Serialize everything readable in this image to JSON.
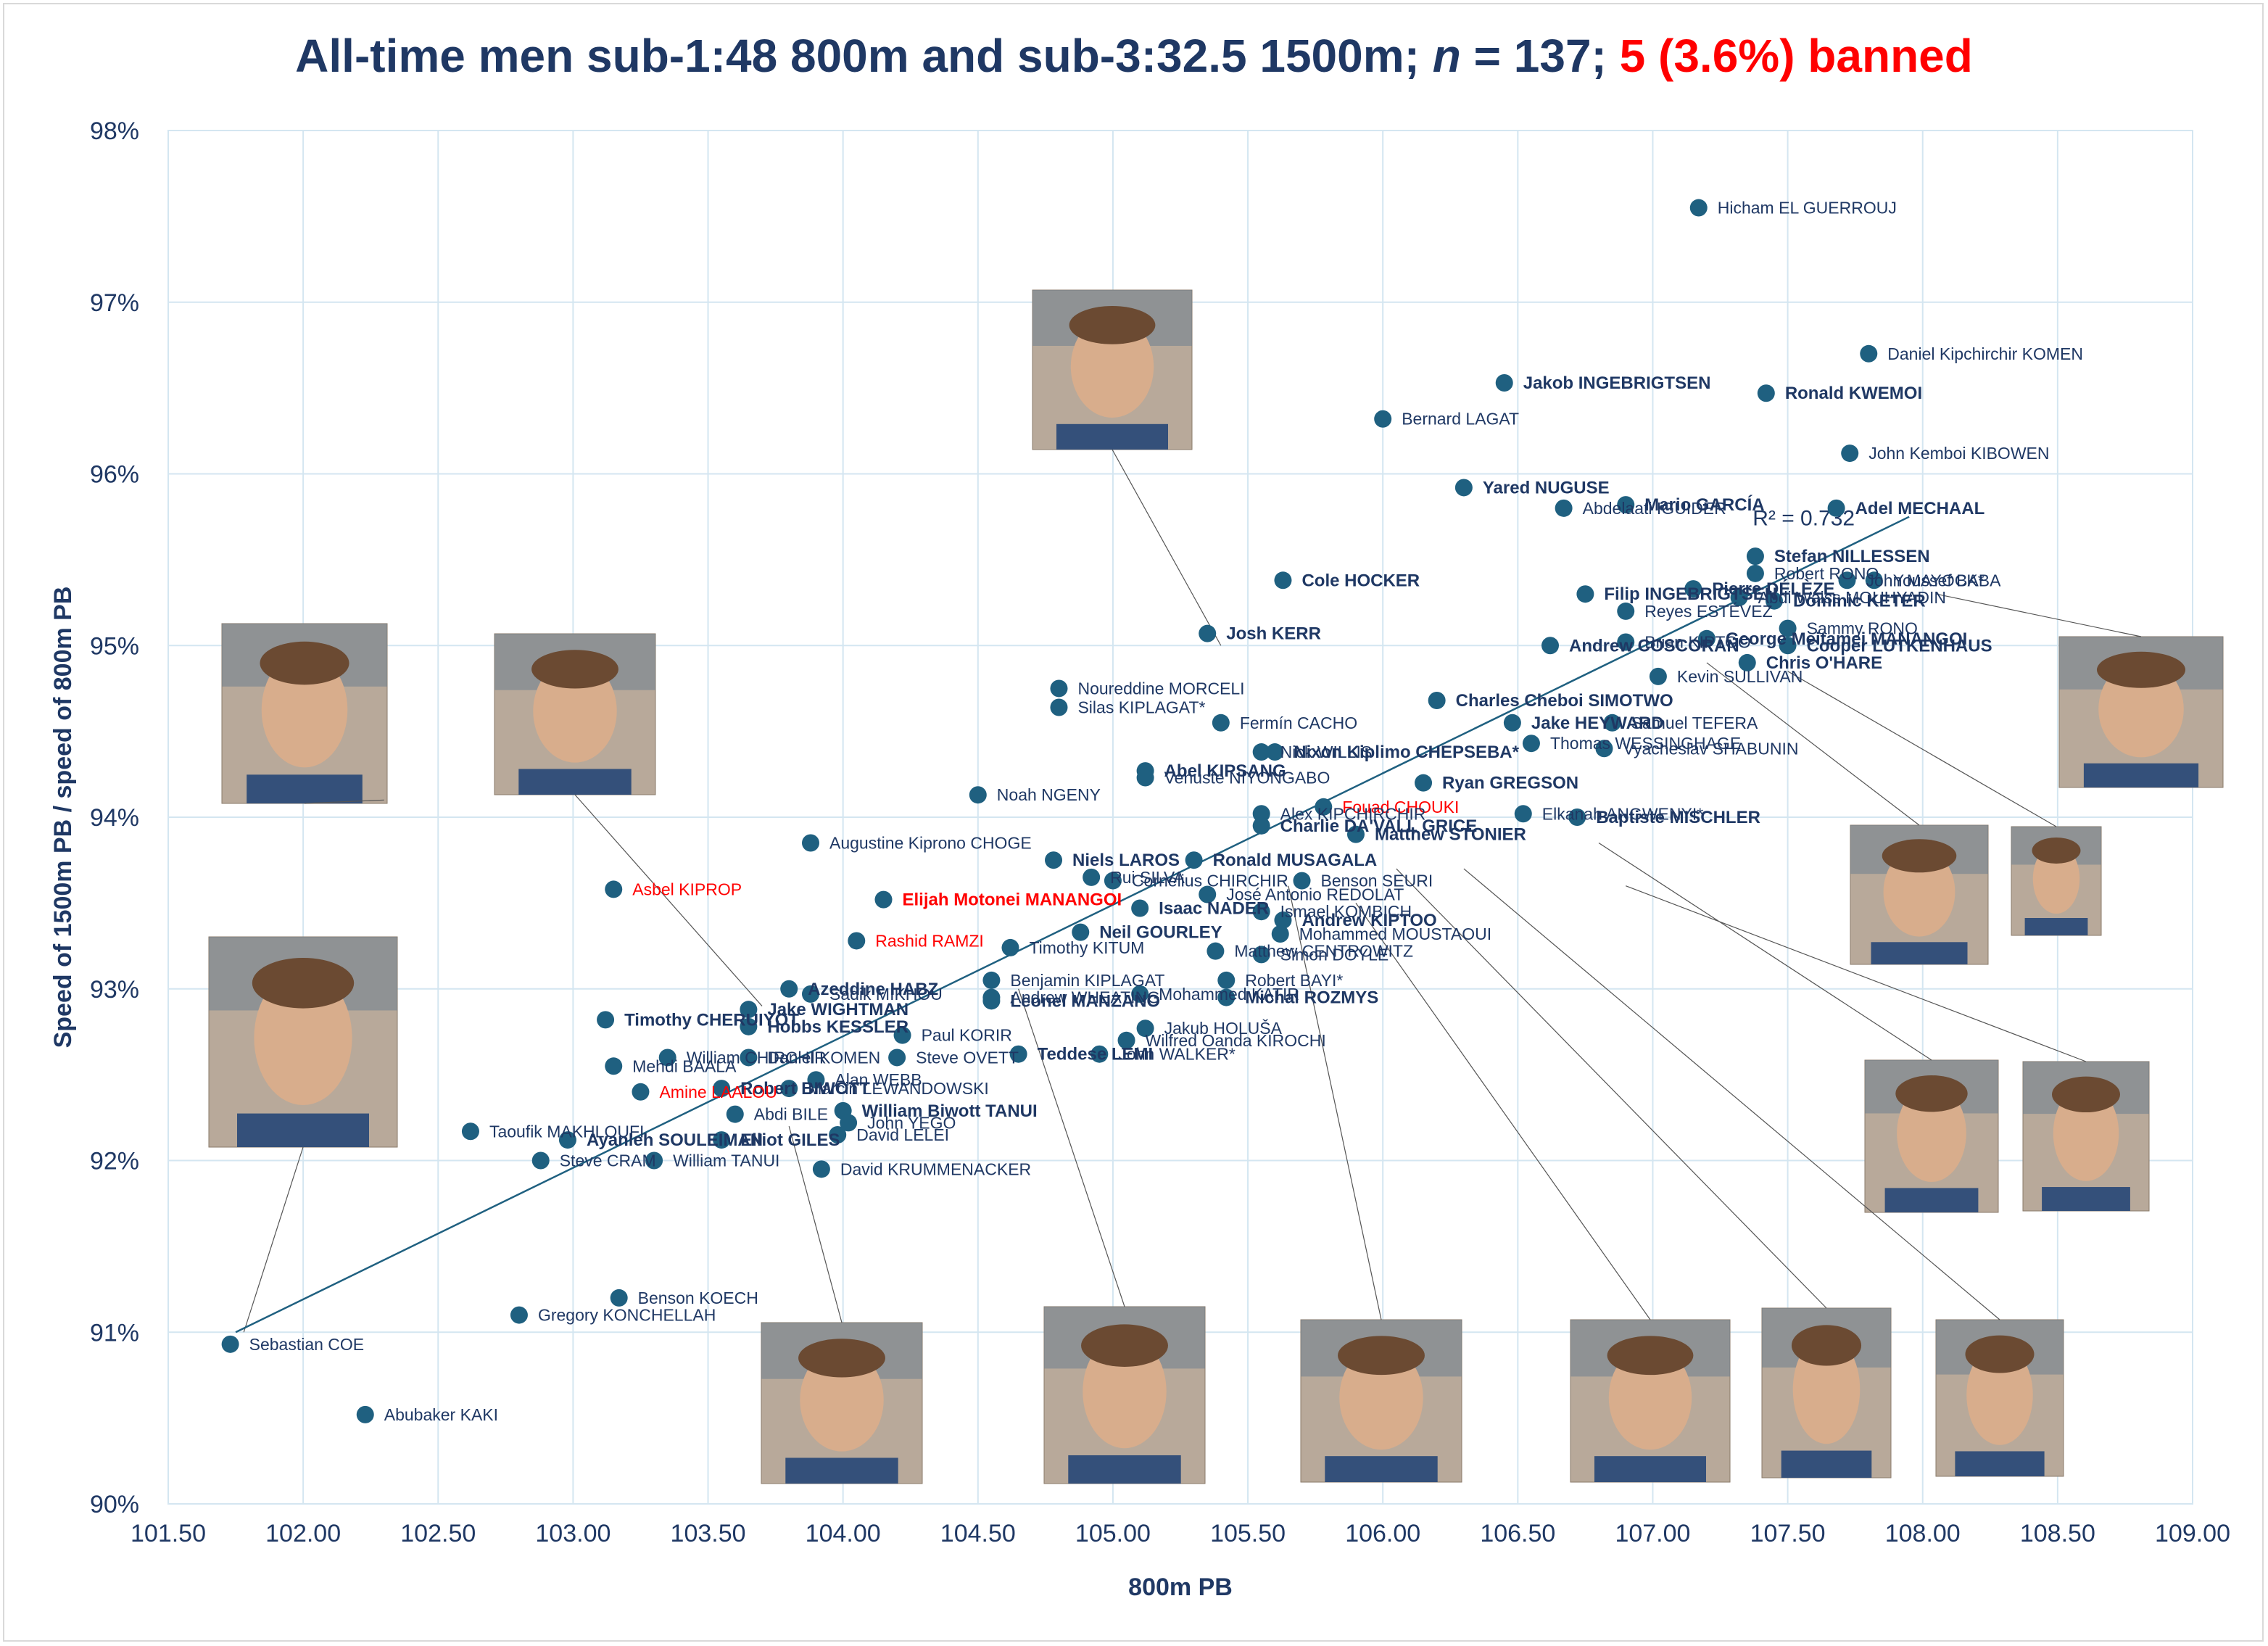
{
  "title": {
    "part1": "All-time men sub-1:48 800m and sub-3:32.5 1500m; ",
    "n_symbol": "n",
    "part2": " = 137; ",
    "banned_text": "5 (3.6%) banned"
  },
  "colors": {
    "marker": "#1f6080",
    "text": "#1f3864",
    "banned": "#ff0000",
    "grid": "#d4e6f1",
    "trendline": "#1f6080"
  },
  "chart_data": {
    "type": "scatter",
    "title": "All-time men sub-1:48 800m and sub-3:32.5 1500m; n = 137; 5 (3.6%) banned",
    "xlabel": "800m PB",
    "ylabel": "Speed of 1500m PB / speed of 800m PB",
    "xlim": [
      101.5,
      109.0
    ],
    "ylim": [
      90,
      98
    ],
    "x_ticks": [
      "101.50",
      "102.00",
      "102.50",
      "103.00",
      "103.50",
      "104.00",
      "104.50",
      "105.00",
      "105.50",
      "106.00",
      "106.50",
      "107.00",
      "107.50",
      "108.00",
      "108.50",
      "109.00"
    ],
    "y_ticks": [
      "90%",
      "91%",
      "92%",
      "93%",
      "94%",
      "95%",
      "96%",
      "97%",
      "98%"
    ],
    "grid": true,
    "trendline": {
      "x0": 101.75,
      "y0": 91.0,
      "x1": 107.95,
      "y1": 95.75,
      "r2_label": "R² = 0.732"
    },
    "points": [
      {
        "name": "Hicham EL GUERROUJ",
        "x": 107.17,
        "y": 97.55
      },
      {
        "name": "Daniel Kipchirchir KOMEN",
        "x": 107.8,
        "y": 96.7
      },
      {
        "name": "Jakob INGEBRIGTSEN",
        "x": 106.45,
        "y": 96.53,
        "bold": true
      },
      {
        "name": "Ronald KWEMOI",
        "x": 107.42,
        "y": 96.47,
        "bold": true
      },
      {
        "name": "Bernard LAGAT",
        "x": 106.0,
        "y": 96.32
      },
      {
        "name": "John Kemboi KIBOWEN",
        "x": 107.73,
        "y": 96.12
      },
      {
        "name": "Yared NUGUSE",
        "x": 106.3,
        "y": 95.92,
        "bold": true
      },
      {
        "name": "Abdelaati IGUIDER",
        "x": 106.67,
        "y": 95.8
      },
      {
        "name": "Mario GARCÍA",
        "x": 106.9,
        "y": 95.82,
        "bold": true
      },
      {
        "name": "Adel MECHAAL",
        "x": 107.68,
        "y": 95.8,
        "bold": true
      },
      {
        "name": "Stefan NILLESSEN",
        "x": 107.38,
        "y": 95.52,
        "bold": true
      },
      {
        "name": "Robert RONO",
        "x": 107.38,
        "y": 95.42
      },
      {
        "name": "John MAYOCK*",
        "x": 107.72,
        "y": 95.38
      },
      {
        "name": "Youssef BABA",
        "x": 107.82,
        "y": 95.38
      },
      {
        "name": "Cole HOCKER",
        "x": 105.63,
        "y": 95.38,
        "bold": true
      },
      {
        "name": "Filip INGEBRIGTSEN",
        "x": 106.75,
        "y": 95.3,
        "bold": true
      },
      {
        "name": "Pierre DÉLÈZE",
        "x": 107.15,
        "y": 95.33,
        "bold": true
      },
      {
        "name": "Abdi Waiss MOUHYADIN",
        "x": 107.32,
        "y": 95.28
      },
      {
        "name": "Dominic KETER",
        "x": 107.45,
        "y": 95.26,
        "bold": true
      },
      {
        "name": "Reyes ESTÉVEZ",
        "x": 106.9,
        "y": 95.2
      },
      {
        "name": "Sammy RONO",
        "x": 107.5,
        "y": 95.1
      },
      {
        "name": "Josh KERR",
        "x": 105.35,
        "y": 95.07,
        "bold": true
      },
      {
        "name": "Andrew COSCORAN",
        "x": 106.62,
        "y": 95.0,
        "bold": true
      },
      {
        "name": "Brian KIPTOO",
        "x": 106.9,
        "y": 95.02
      },
      {
        "name": "George Meitamei MANANGOI",
        "x": 107.2,
        "y": 95.04,
        "bold": true
      },
      {
        "name": "Cooper LUTKENHAUS",
        "x": 107.5,
        "y": 95.0,
        "bold": true
      },
      {
        "name": "Chris O'HARE",
        "x": 107.35,
        "y": 94.9,
        "bold": true
      },
      {
        "name": "Kevin SULLIVAN",
        "x": 107.02,
        "y": 94.82
      },
      {
        "name": "Noureddine MORCELI",
        "x": 104.8,
        "y": 94.75
      },
      {
        "name": "Charles Cheboi SIMOTWO",
        "x": 106.2,
        "y": 94.68,
        "bold": true
      },
      {
        "name": "Silas KIPLAGAT*",
        "x": 104.8,
        "y": 94.64
      },
      {
        "name": "Fermín CACHO",
        "x": 105.4,
        "y": 94.55
      },
      {
        "name": "Jake HEYWARD",
        "x": 106.48,
        "y": 94.55,
        "bold": true
      },
      {
        "name": "Samuel TEFERA",
        "x": 106.85,
        "y": 94.55
      },
      {
        "name": "Thomas WESSINGHAGE",
        "x": 106.55,
        "y": 94.43
      },
      {
        "name": "Vyacheslav SHABUNIN",
        "x": 106.82,
        "y": 94.4
      },
      {
        "name": "Nixon Kiplimo CHEPSEBA*",
        "x": 105.6,
        "y": 94.38,
        "bold": true
      },
      {
        "name": "Nick WILLIS",
        "x": 105.55,
        "y": 94.38
      },
      {
        "name": "Abel KIPSANG",
        "x": 105.12,
        "y": 94.27,
        "bold": true
      },
      {
        "name": "Venuste NIYONGABO",
        "x": 105.12,
        "y": 94.23
      },
      {
        "name": "Ryan GREGSON",
        "x": 106.15,
        "y": 94.2,
        "bold": true
      },
      {
        "name": "Noah NGENY",
        "x": 104.5,
        "y": 94.13
      },
      {
        "name": "Fouad CHOUKI",
        "x": 105.78,
        "y": 94.06,
        "banned": true
      },
      {
        "name": "Alex KIPCHIRCHIR",
        "x": 105.55,
        "y": 94.02
      },
      {
        "name": "Elkanah ANGWENYI*",
        "x": 106.52,
        "y": 94.02
      },
      {
        "name": "Baptiste MISCHLER",
        "x": 106.72,
        "y": 94.0,
        "bold": true
      },
      {
        "name": "Charlie DA'VALL GRICE",
        "x": 105.55,
        "y": 93.95,
        "bold": true
      },
      {
        "name": "Matthew STONIER",
        "x": 105.9,
        "y": 93.9,
        "bold": true
      },
      {
        "name": "Augustine Kiprono CHOGE",
        "x": 103.88,
        "y": 93.85
      },
      {
        "name": "Ronald MUSAGALA",
        "x": 105.3,
        "y": 93.75,
        "bold": true
      },
      {
        "name": "Niels LAROS",
        "x": 104.78,
        "y": 93.75,
        "bold": true
      },
      {
        "name": "Rui SILVA",
        "x": 104.92,
        "y": 93.65
      },
      {
        "name": "Cornelius CHIRCHIR",
        "x": 105.0,
        "y": 93.63
      },
      {
        "name": "Benson SEURI",
        "x": 105.7,
        "y": 93.63
      },
      {
        "name": "Elijah Motonei MANANGOI",
        "x": 104.15,
        "y": 93.52,
        "banned": true,
        "bold": true
      },
      {
        "name": "Asbel KIPROP",
        "x": 103.15,
        "y": 93.58,
        "banned": true
      },
      {
        "name": "José Antonio REDOLAT",
        "x": 105.35,
        "y": 93.55
      },
      {
        "name": "Isaac NADER",
        "x": 105.1,
        "y": 93.47,
        "bold": true
      },
      {
        "name": "Ismael KOMBICH",
        "x": 105.55,
        "y": 93.45
      },
      {
        "name": "Andrew KIPTOO",
        "x": 105.63,
        "y": 93.4,
        "bold": true
      },
      {
        "name": "Neil GOURLEY",
        "x": 104.88,
        "y": 93.33,
        "bold": true
      },
      {
        "name": "Rashid RAMZI",
        "x": 104.05,
        "y": 93.28,
        "banned": true
      },
      {
        "name": "Timothy KITUM",
        "x": 104.62,
        "y": 93.24
      },
      {
        "name": "Matthew CENTROWITZ",
        "x": 105.38,
        "y": 93.22
      },
      {
        "name": "Simon DOYLE",
        "x": 105.55,
        "y": 93.2
      },
      {
        "name": "Mohammed MOUSTAOUI",
        "x": 105.62,
        "y": 93.32
      },
      {
        "name": "Azeddine HABZ",
        "x": 103.8,
        "y": 93.0,
        "bold": true
      },
      {
        "name": "Sadik MIKHOU",
        "x": 103.88,
        "y": 92.97
      },
      {
        "name": "Benjamin KIPLAGAT",
        "x": 104.55,
        "y": 93.05
      },
      {
        "name": "Andrew WHEATING",
        "x": 104.55,
        "y": 92.95
      },
      {
        "name": "Robert BAYI*",
        "x": 105.42,
        "y": 93.05
      },
      {
        "name": "Leonel MANZANO",
        "x": 104.55,
        "y": 92.93,
        "bold": true
      },
      {
        "name": "Mohammed KATIR",
        "x": 105.1,
        "y": 92.97
      },
      {
        "name": "Michal ROZMYS",
        "x": 105.42,
        "y": 92.95,
        "bold": true
      },
      {
        "name": "Timothy CHERUIYOT",
        "x": 103.12,
        "y": 92.82,
        "bold": true
      },
      {
        "name": "Jake WIGHTMAN",
        "x": 103.65,
        "y": 92.88,
        "bold": true
      },
      {
        "name": "Hobbs KESSLER",
        "x": 103.65,
        "y": 92.78,
        "bold": true
      },
      {
        "name": "Jakub HOLUŠA",
        "x": 105.12,
        "y": 92.77
      },
      {
        "name": "Paul KORIR",
        "x": 104.22,
        "y": 92.73
      },
      {
        "name": "Wilfred Oanda KIROCHI",
        "x": 105.05,
        "y": 92.7
      },
      {
        "name": "Teddese LEMI",
        "x": 104.65,
        "y": 92.62,
        "bold": true
      },
      {
        "name": "John WALKER*",
        "x": 104.95,
        "y": 92.62
      },
      {
        "name": "William CHIRCHIR",
        "x": 103.35,
        "y": 92.6
      },
      {
        "name": "Daniel KOMEN",
        "x": 103.65,
        "y": 92.6
      },
      {
        "name": "Steve OVETT",
        "x": 104.2,
        "y": 92.6
      },
      {
        "name": "Mehdi BAALA",
        "x": 103.15,
        "y": 92.55
      },
      {
        "name": "Alan WEBB",
        "x": 103.9,
        "y": 92.47
      },
      {
        "name": "Robert BIWOTT",
        "x": 103.55,
        "y": 92.42,
        "bold": true
      },
      {
        "name": "Marcin LEWANDOWSKI",
        "x": 103.8,
        "y": 92.42
      },
      {
        "name": "Amine LAALOU",
        "x": 103.25,
        "y": 92.4,
        "banned": true
      },
      {
        "name": "Abdi BILE",
        "x": 103.6,
        "y": 92.27
      },
      {
        "name": "William Biwott TANUI",
        "x": 104.0,
        "y": 92.29,
        "bold": true
      },
      {
        "name": "John YEGO",
        "x": 104.02,
        "y": 92.22
      },
      {
        "name": "Taoufik MAKHLOUFI",
        "x": 102.62,
        "y": 92.17
      },
      {
        "name": "Ayanleh SOULEIMAN",
        "x": 102.98,
        "y": 92.12,
        "bold": true
      },
      {
        "name": "Elliot GILES",
        "x": 103.55,
        "y": 92.12,
        "bold": true
      },
      {
        "name": "David LELEI",
        "x": 103.98,
        "y": 92.15
      },
      {
        "name": "Steve CRAM",
        "x": 102.88,
        "y": 92.0
      },
      {
        "name": "William TANUI",
        "x": 103.3,
        "y": 92.0
      },
      {
        "name": "David KRUMMENACKER",
        "x": 103.92,
        "y": 91.95
      },
      {
        "name": "Benson KOECH",
        "x": 103.17,
        "y": 91.2
      },
      {
        "name": "Gregory KONCHELLAH",
        "x": 102.8,
        "y": 91.1
      },
      {
        "name": "Sebastian COE",
        "x": 101.73,
        "y": 90.93
      },
      {
        "name": "Abubaker KAKI",
        "x": 102.23,
        "y": 90.52
      }
    ]
  },
  "photos": [
    "athlete-photo"
  ]
}
